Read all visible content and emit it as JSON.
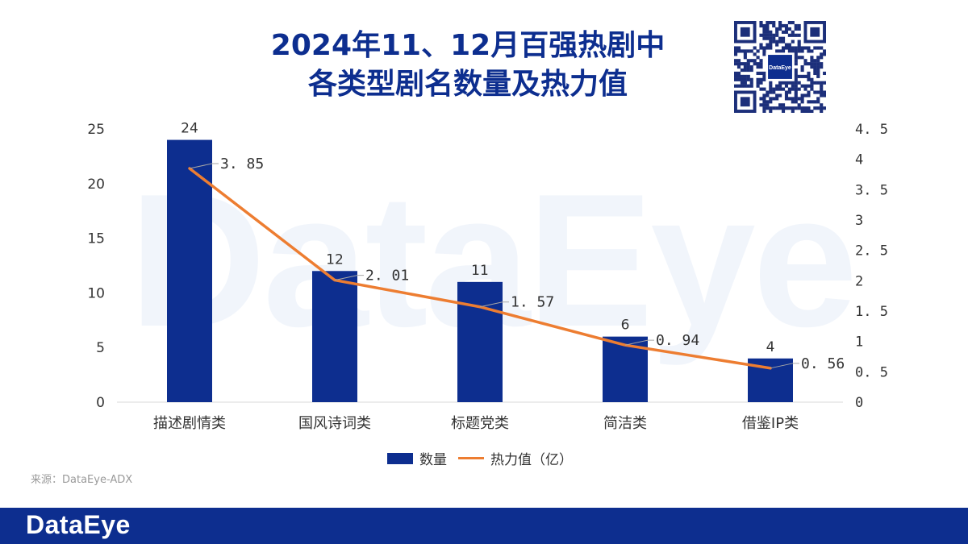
{
  "header": {
    "title_line1": "2024年11、12月百强热剧中",
    "title_line2": "各类型剧名数量及热力值"
  },
  "watermark": "DataEye",
  "qr_code": {
    "center_label": "DataEye"
  },
  "chart_data": {
    "type": "bar",
    "categories": [
      "描述剧情类",
      "国风诗词类",
      "标题党类",
      "简洁类",
      "借鉴IP类"
    ],
    "series": [
      {
        "name": "数量",
        "type": "bar",
        "axis": "left",
        "color": "#0d2e8f",
        "values": [
          24,
          12,
          11,
          6,
          4
        ]
      },
      {
        "name": "热力值（亿）",
        "type": "line",
        "axis": "right",
        "color": "#ed7d31",
        "values": [
          3.85,
          2.01,
          1.57,
          0.94,
          0.56
        ],
        "value_labels": [
          "3. 85",
          "2. 01",
          "1. 57",
          "0. 94",
          "0. 56"
        ]
      }
    ],
    "y_left": {
      "min": 0,
      "max": 25,
      "ticks": [
        "0",
        "5",
        "10",
        "15",
        "20",
        "25"
      ]
    },
    "y_right": {
      "min": 0,
      "max": 4.5,
      "ticks": [
        "0",
        "0. 5",
        "1",
        "1. 5",
        "2",
        "2. 5",
        "3",
        "3. 5",
        "4",
        "4. 5"
      ]
    },
    "grid": false,
    "legend_position": "bottom"
  },
  "legend": {
    "bar_label": "数量",
    "line_label": "热力值（亿）"
  },
  "source": "来源：DataEye-ADX",
  "footer": {
    "brand": "DataEye"
  },
  "colors": {
    "primary": "#0d2e8f",
    "line": "#ed7d31",
    "watermark": "#f1f5fb"
  }
}
